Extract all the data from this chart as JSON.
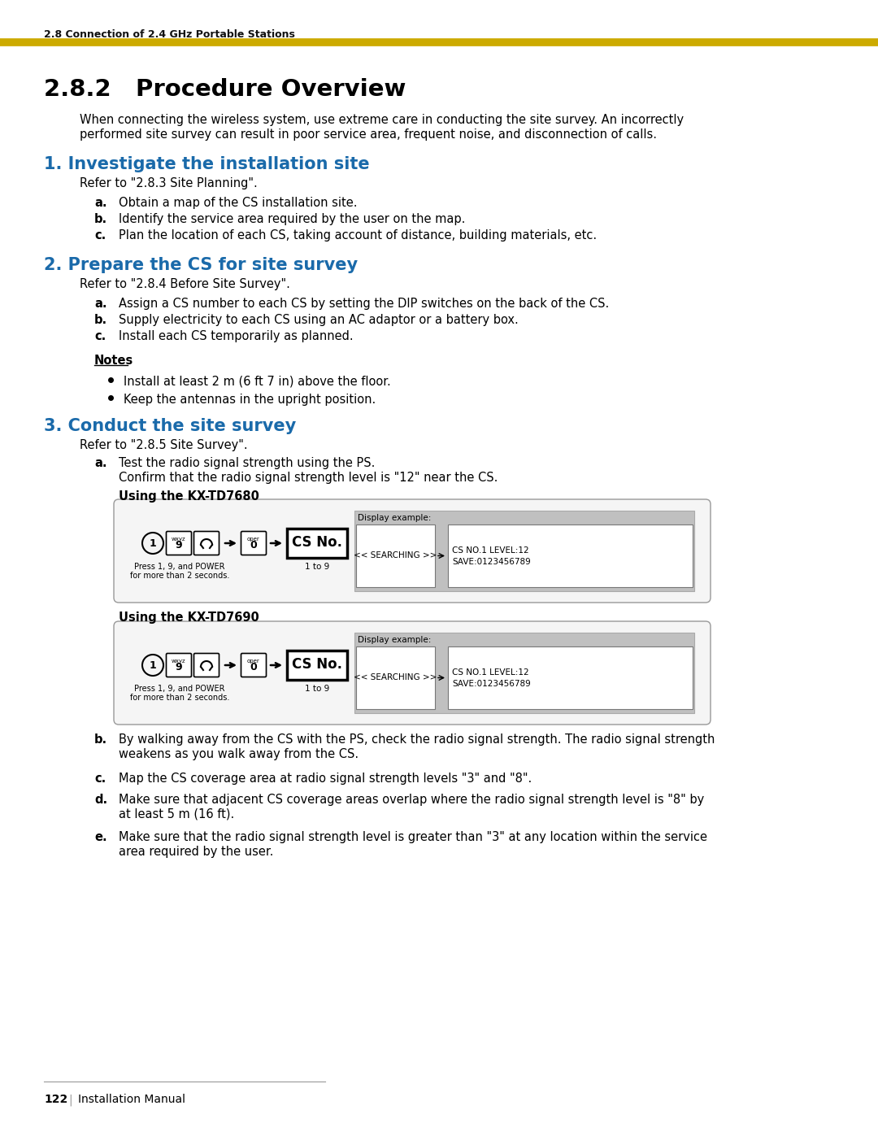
{
  "page_bg": "#ffffff",
  "header_text": "2.8 Connection of 2.4 GHz Portable Stations",
  "header_line_color": "#ccaa00",
  "title": "2.8.2   Procedure Overview",
  "intro_text1": "When connecting the wireless system, use extreme care in conducting the site survey. An incorrectly",
  "intro_text2": "performed site survey can result in poor service area, frequent noise, and disconnection of calls.",
  "section1_title": "1. Investigate the installation site",
  "section1_refer": "Refer to \"2.8.3 Site Planning\".",
  "section1_a": "Obtain a map of the CS installation site.",
  "section1_b": "Identify the service area required by the user on the map.",
  "section1_c": "Plan the location of each CS, taking account of distance, building materials, etc.",
  "section2_title": "2. Prepare the CS for site survey",
  "section2_refer": "Refer to \"2.8.4 Before Site Survey\".",
  "section2_a": "Assign a CS number to each CS by setting the DIP switches on the back of the CS.",
  "section2_b": "Supply electricity to each CS using an AC adaptor or a battery box.",
  "section2_c": "Install each CS temporarily as planned.",
  "notes_title": "Notes",
  "notes_item1": "Install at least 2 m (6 ft 7 in) above the floor.",
  "notes_item2": "Keep the antennas in the upright position.",
  "section3_title": "3. Conduct the site survey",
  "section3_refer": "Refer to \"2.8.5 Site Survey\".",
  "section3_a1": "Test the radio signal strength using the PS.",
  "section3_a2": "Confirm that the radio signal strength level is \"12\" near the CS.",
  "using_td7680": "Using the KX-TD7680",
  "using_td7690": "Using the KX-TD7690",
  "press_label": "Press 1, 9, and POWER",
  "press_label2": "for more than 2 seconds.",
  "range_label": "1 to 9",
  "display_example": "Display example:",
  "searching_text": "<< SEARCHING >>",
  "cs_level_text": "CS NO.1 LEVEL:12",
  "save_text": "SAVE:0123456789",
  "section3_b1": "By walking away from the CS with the PS, check the radio signal strength. The radio signal strength",
  "section3_b2": "weakens as you walk away from the CS.",
  "section3_c": "Map the CS coverage area at radio signal strength levels \"3\" and \"8\".",
  "section3_d1": "Make sure that adjacent CS coverage areas overlap where the radio signal strength level is \"8\" by",
  "section3_d2": "at least 5 m (16 ft).",
  "section3_e1": "Make sure that the radio signal strength level is greater than \"3\" at any location within the service",
  "section3_e2": "area required by the user.",
  "footer_num": "122",
  "footer_sep": "|",
  "footer_label": "Installation Manual",
  "section_color": "#1a6aaa",
  "body_color": "#000000",
  "header_color": "#111111",
  "line_color": "#ccaa00",
  "gray_box": "#e8e8e8",
  "mid_gray": "#b0b0b0"
}
